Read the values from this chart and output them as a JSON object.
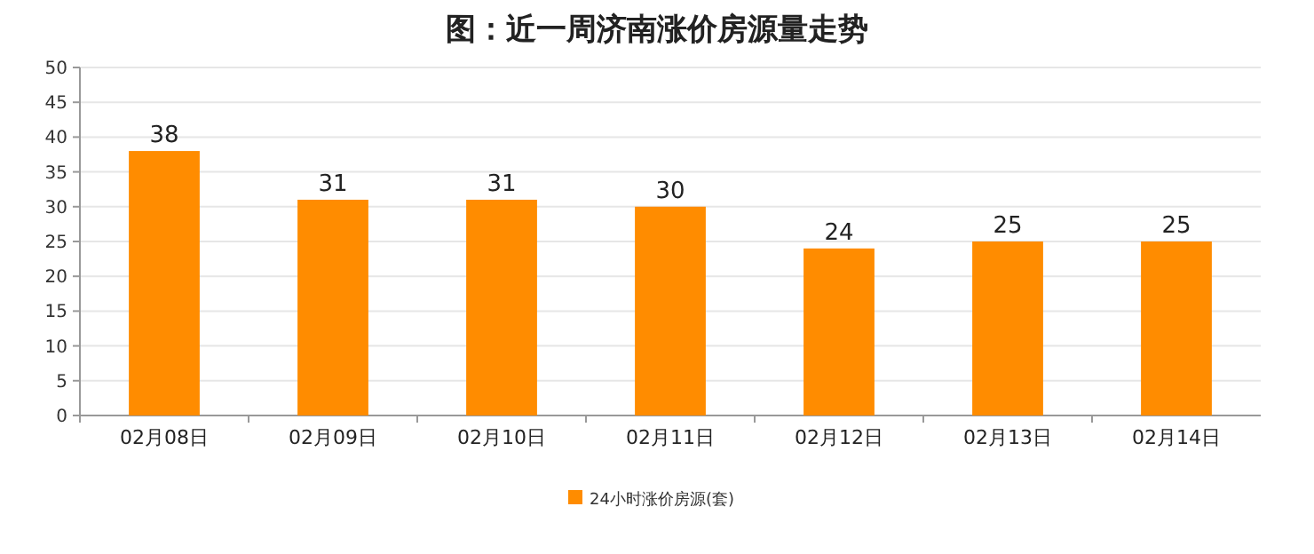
{
  "chart_data": {
    "type": "bar",
    "title": "图：近一周济南涨价房源量走势",
    "categories": [
      "02月08日",
      "02月09日",
      "02月10日",
      "02月11日",
      "02月12日",
      "02月13日",
      "02月14日"
    ],
    "series": [
      {
        "name": "24小时涨价房源(套)",
        "color": "#ff8c00",
        "values": [
          38,
          31,
          31,
          30,
          24,
          25,
          25
        ]
      }
    ],
    "ylim": [
      0,
      50
    ],
    "yticks": [
      0,
      5,
      10,
      15,
      20,
      25,
      30,
      35,
      40,
      45,
      50
    ],
    "grid": "y",
    "data_labels": true,
    "legend": "bottom"
  }
}
